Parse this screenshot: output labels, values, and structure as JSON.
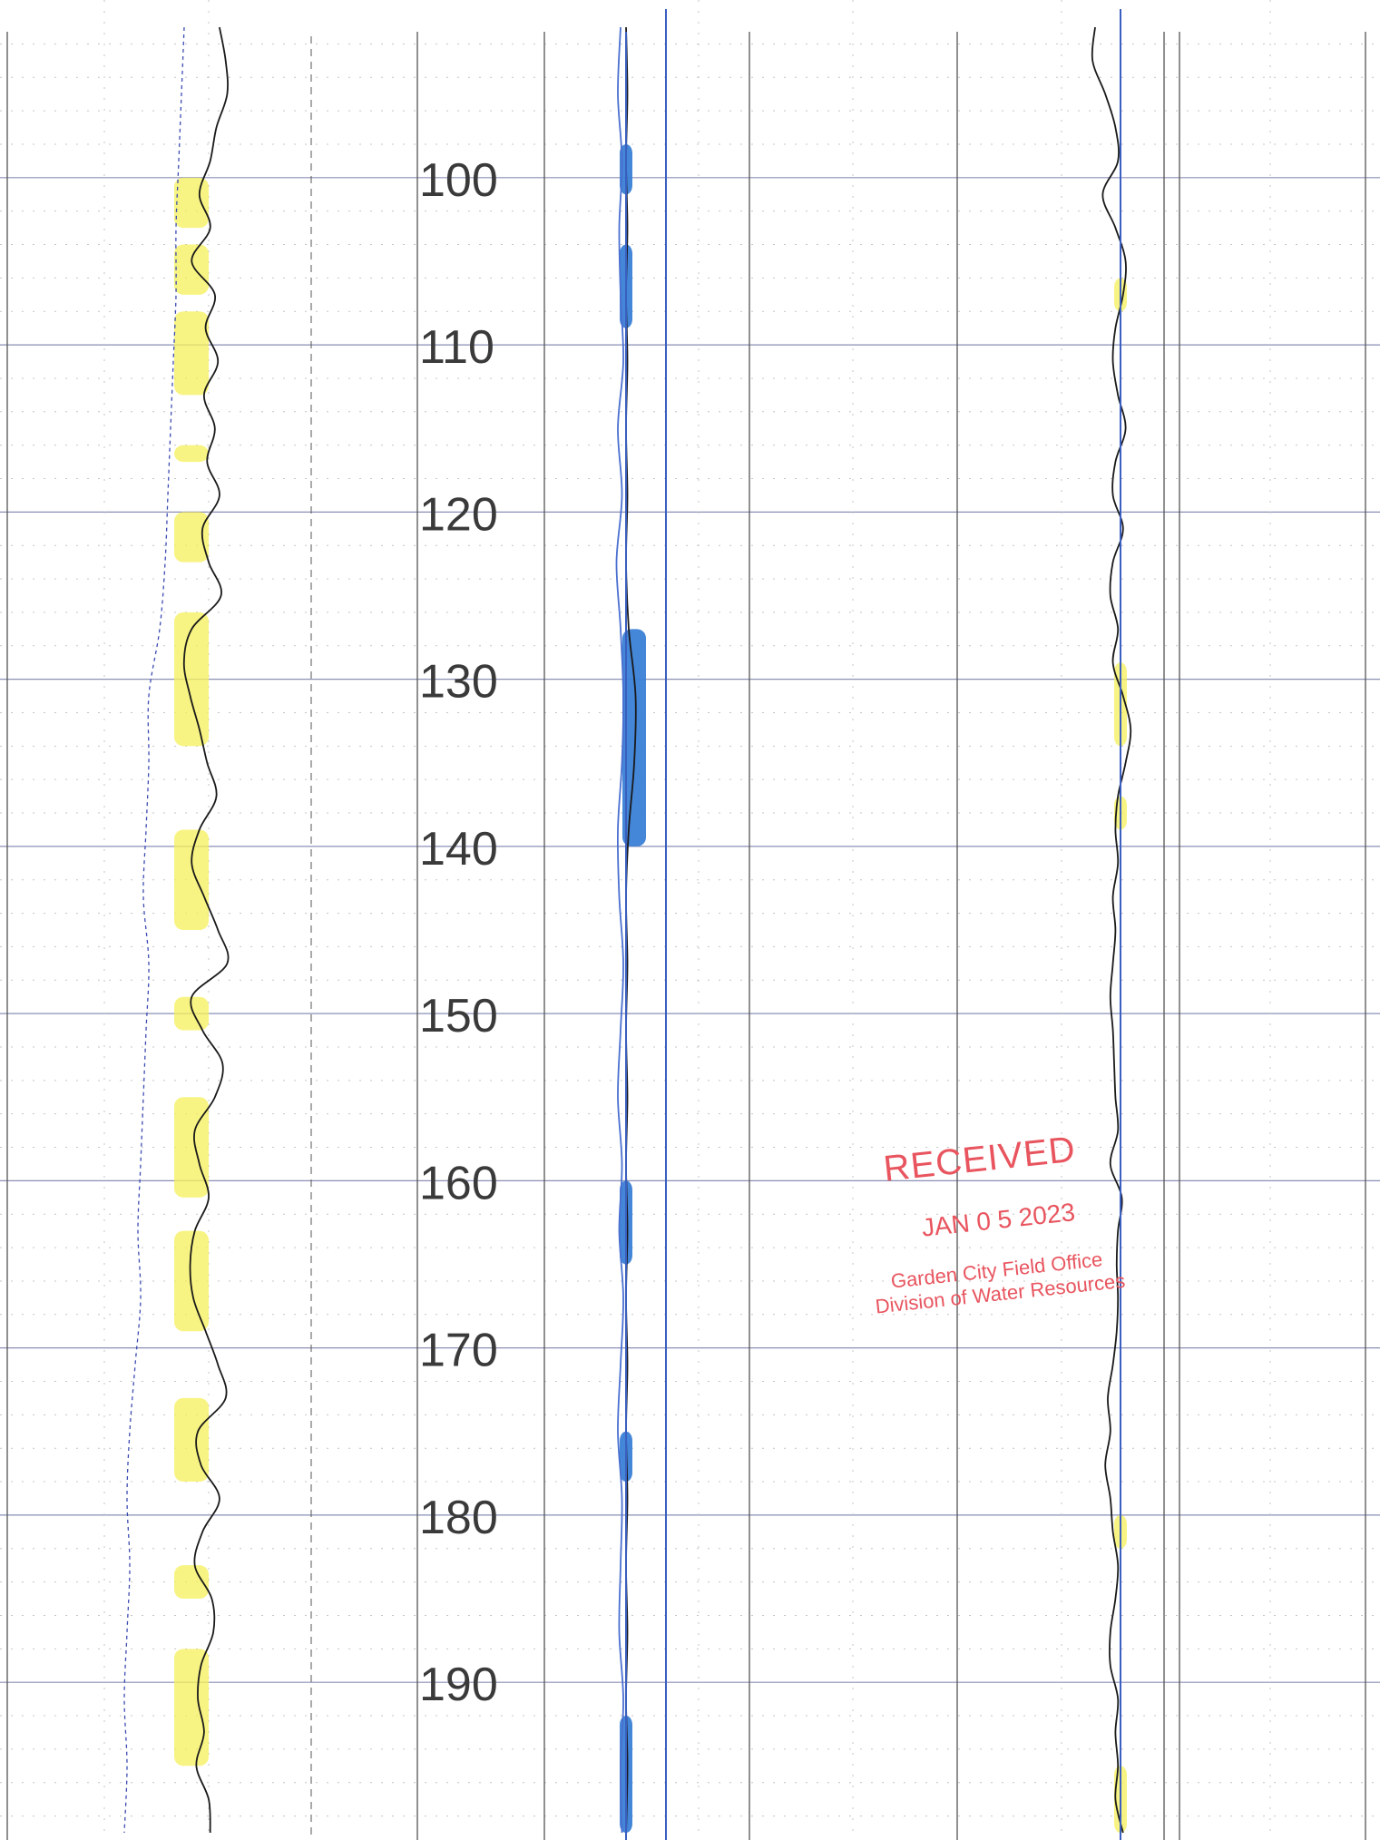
{
  "chart_data": {
    "type": "line",
    "title": "",
    "depth_labels": [
      "100",
      "110",
      "120",
      "130",
      "140",
      "150",
      "160",
      "170",
      "180",
      "190"
    ],
    "depth_range": [
      91,
      199
    ],
    "grid": true,
    "tracks": [
      {
        "name": "",
        "series": [
          {
            "name": "",
            "color": "#1a1a1a",
            "style": "solid",
            "depth": [
              91,
              93,
              95,
              97,
              99,
              101,
              103,
              105,
              107,
              109,
              111,
              113,
              115,
              117,
              119,
              121,
              123,
              125,
              127,
              129,
              131,
              133,
              135,
              137,
              139,
              141,
              143,
              145,
              147,
              149,
              151,
              153,
              155,
              157,
              159,
              161,
              163,
              165,
              167,
              169,
              171,
              173,
              175,
              177,
              179,
              181,
              183,
              185,
              187,
              189,
              191,
              193,
              195,
              197,
              199
            ],
            "value": [
              0.35,
              0.55,
              0.6,
              0.25,
              0.05,
              -0.3,
              0.05,
              -0.55,
              0.2,
              -0.1,
              0.3,
              -0.15,
              0.2,
              -0.05,
              0.35,
              -0.2,
              0.0,
              0.4,
              -0.55,
              -0.8,
              -0.6,
              -0.3,
              -0.05,
              0.25,
              -0.3,
              -0.55,
              -0.15,
              0.3,
              0.6,
              -0.55,
              -0.2,
              0.45,
              0.2,
              -0.45,
              -0.3,
              0.0,
              -0.45,
              -0.6,
              -0.5,
              -0.1,
              0.3,
              0.55,
              -0.35,
              -0.25,
              0.35,
              -0.2,
              -0.45,
              0.1,
              0.15,
              -0.25,
              -0.35,
              -0.15,
              -0.4,
              0.0,
              0.05
            ]
          },
          {
            "name": "",
            "color": "#3b4bb0",
            "style": "dashed",
            "depth": [
              91,
              95,
              99,
              103,
              107,
              111,
              115,
              119,
              123,
              127,
              131,
              135,
              139,
              143,
              147,
              151,
              155,
              159,
              163,
              167,
              171,
              175,
              179,
              183,
              187,
              191,
              195,
              199
            ],
            "value": [
              -0.45,
              -0.5,
              -0.55,
              -0.6,
              -0.6,
              -0.65,
              -0.7,
              -0.75,
              -0.8,
              -0.9,
              -1.1,
              -1.1,
              -1.15,
              -1.2,
              -1.1,
              -1.15,
              -1.2,
              -1.25,
              -1.3,
              -1.25,
              -1.35,
              -1.45,
              -1.5,
              -1.45,
              -1.5,
              -1.55,
              -1.5,
              -1.55
            ]
          }
        ],
        "highlighted_intervals": [
          [
            100,
            103
          ],
          [
            104,
            107
          ],
          [
            108,
            113
          ],
          [
            116,
            117
          ],
          [
            120,
            123
          ],
          [
            126,
            134
          ],
          [
            139,
            145
          ],
          [
            149,
            151
          ],
          [
            155,
            161
          ],
          [
            163,
            169
          ],
          [
            173,
            178
          ],
          [
            183,
            185
          ],
          [
            188,
            195
          ]
        ]
      },
      {
        "name": "",
        "series": [
          {
            "name": "",
            "color": "#1a1a1a",
            "style": "solid",
            "depth": [
              91,
              95,
              99,
              103,
              107,
              111,
              115,
              119,
              123,
              127,
              131,
              135,
              139,
              143,
              147,
              151,
              155,
              159,
              163,
              167,
              171,
              175,
              179,
              183,
              187,
              191,
              195,
              199
            ],
            "value": [
              0.0,
              0.05,
              0.0,
              0.05,
              0.0,
              0.05,
              0.0,
              0.05,
              0.0,
              0.1,
              0.35,
              0.3,
              0.1,
              0.0,
              0.05,
              0.0,
              0.05,
              0.0,
              0.05,
              0.0,
              0.05,
              0.0,
              0.05,
              0.0,
              0.05,
              0.0,
              0.05,
              0.0
            ]
          },
          {
            "name": "",
            "color": "#4a6fd0",
            "style": "solid",
            "depth": [
              91,
              95,
              99,
              103,
              107,
              111,
              115,
              119,
              123,
              127,
              131,
              135,
              139,
              143,
              147,
              151,
              155,
              159,
              163,
              167,
              171,
              175,
              179,
              183,
              187,
              191,
              195,
              199
            ],
            "value": [
              -0.2,
              -0.3,
              -0.15,
              -0.25,
              -0.2,
              -0.1,
              -0.3,
              -0.15,
              -0.35,
              -0.2,
              -0.1,
              -0.15,
              -0.3,
              -0.25,
              -0.1,
              -0.2,
              -0.3,
              -0.15,
              -0.25,
              -0.1,
              -0.2,
              -0.3,
              -0.15,
              -0.2,
              -0.25,
              -0.1,
              -0.2,
              -0.15
            ]
          }
        ],
        "highlighted_intervals": [
          [
            98,
            101
          ],
          [
            104,
            109
          ],
          [
            127,
            140
          ],
          [
            160,
            165
          ],
          [
            175,
            178
          ],
          [
            192,
            199
          ]
        ]
      },
      {
        "name": "",
        "series": [
          {
            "name": "",
            "color": "#1a1a1a",
            "style": "solid",
            "depth": [
              91,
              93,
              95,
              97,
              99,
              101,
              103,
              105,
              107,
              109,
              111,
              113,
              115,
              117,
              119,
              121,
              123,
              125,
              127,
              129,
              131,
              133,
              135,
              137,
              139,
              141,
              143,
              145,
              147,
              149,
              151,
              153,
              155,
              157,
              159,
              161,
              163,
              165,
              167,
              169,
              171,
              173,
              175,
              177,
              179,
              181,
              183,
              185,
              187,
              189,
              191,
              193,
              195,
              197,
              199
            ],
            "value": [
              -1.0,
              -1.1,
              -0.6,
              -0.2,
              -0.1,
              -0.7,
              -0.2,
              0.2,
              0.1,
              -0.2,
              -0.3,
              -0.1,
              0.2,
              -0.2,
              -0.3,
              0.1,
              -0.3,
              -0.4,
              -0.1,
              -0.3,
              0.1,
              0.4,
              0.2,
              -0.1,
              -0.2,
              -0.1,
              -0.3,
              -0.2,
              -0.3,
              -0.4,
              -0.3,
              -0.25,
              -0.2,
              -0.1,
              -0.4,
              0.05,
              -0.1,
              -0.15,
              -0.1,
              -0.15,
              -0.3,
              -0.5,
              -0.4,
              -0.6,
              -0.4,
              -0.3,
              -0.1,
              -0.2,
              -0.4,
              -0.4,
              -0.1,
              -0.2,
              -0.1,
              -0.2,
              0.1
            ]
          }
        ],
        "highlighted_intervals": [
          [
            106,
            108
          ],
          [
            129,
            134
          ],
          [
            137,
            139
          ],
          [
            180,
            182
          ],
          [
            195,
            199
          ]
        ]
      }
    ]
  },
  "stamp": {
    "title": "RECEIVED",
    "date": "JAN 0 5 2023",
    "office_line1": "Garden City Field Office",
    "office_line2": "Division of Water Resources"
  },
  "colors": {
    "grid_major": "#8a8fb5",
    "grid_minor": "#c4c4c4",
    "highlight_yellow": "#f5f05a",
    "highlight_blue": "#3a7fd6",
    "stamp_red": "#e8555f",
    "track_border": "#555555"
  }
}
